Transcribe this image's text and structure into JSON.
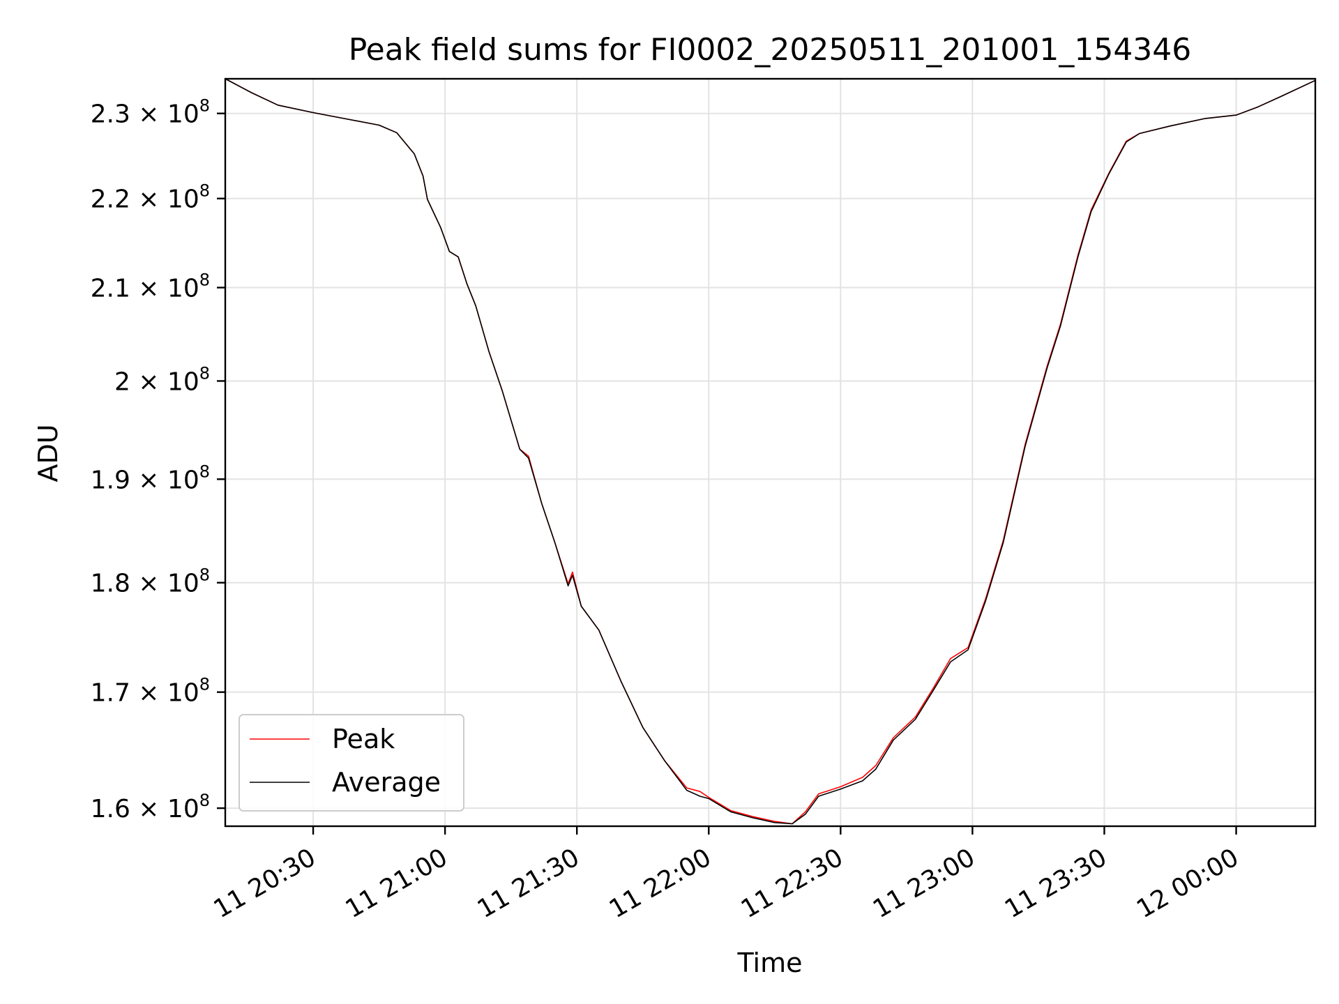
{
  "chart_data": {
    "type": "line",
    "title": "Peak field sums for FI0002_20250511_201001_154346",
    "xlabel": "Time",
    "ylabel": "ADU",
    "y_scale": "log",
    "grid": true,
    "legend_position": "lower-left",
    "xlim": [
      "2025-05-11 20:10",
      "2025-05-12 00:18"
    ],
    "ylim": [
      158500000,
      234200000
    ],
    "x_ticks": [
      {
        "value": "2025-05-11 20:30",
        "label": "11 20:30"
      },
      {
        "value": "2025-05-11 21:00",
        "label": "11 21:00"
      },
      {
        "value": "2025-05-11 21:30",
        "label": "11 21:30"
      },
      {
        "value": "2025-05-11 22:00",
        "label": "11 22:00"
      },
      {
        "value": "2025-05-11 22:30",
        "label": "11 22:30"
      },
      {
        "value": "2025-05-11 23:00",
        "label": "11 23:00"
      },
      {
        "value": "2025-05-11 23:30",
        "label": "11 23:30"
      },
      {
        "value": "2025-05-12 00:00",
        "label": "12 00:00"
      }
    ],
    "y_ticks": [
      {
        "value": 160000000,
        "mantissa": "1.6",
        "exponent": "8"
      },
      {
        "value": 170000000,
        "mantissa": "1.7",
        "exponent": "8"
      },
      {
        "value": 180000000,
        "mantissa": "1.8",
        "exponent": "8"
      },
      {
        "value": 190000000,
        "mantissa": "1.9",
        "exponent": "8"
      },
      {
        "value": 200000000,
        "mantissa": "2",
        "exponent": "8"
      },
      {
        "value": 210000000,
        "mantissa": "2.1",
        "exponent": "8"
      },
      {
        "value": 220000000,
        "mantissa": "2.2",
        "exponent": "8"
      },
      {
        "value": 230000000,
        "mantissa": "2.3",
        "exponent": "8"
      }
    ],
    "series": [
      {
        "name": "Peak",
        "color": "#ff0000",
        "points": [
          [
            "2025-05-11 20:10",
            234200000
          ],
          [
            "2025-05-11 20:16",
            232500000
          ],
          [
            "2025-05-11 20:22",
            231000000
          ],
          [
            "2025-05-11 20:30",
            230100000
          ],
          [
            "2025-05-11 20:38",
            229300000
          ],
          [
            "2025-05-11 20:45",
            228600000
          ],
          [
            "2025-05-11 20:49",
            227700000
          ],
          [
            "2025-05-11 20:53",
            225200000
          ],
          [
            "2025-05-11 20:55",
            222600000
          ],
          [
            "2025-05-11 20:56",
            219900000
          ],
          [
            "2025-05-11 20:59",
            216700000
          ],
          [
            "2025-05-11 21:01",
            214000000
          ],
          [
            "2025-05-11 21:03",
            213400000
          ],
          [
            "2025-05-11 21:05",
            210400000
          ],
          [
            "2025-05-11 21:07",
            208000000
          ],
          [
            "2025-05-11 21:10",
            203100000
          ],
          [
            "2025-05-11 21:13",
            199000000
          ],
          [
            "2025-05-11 21:17",
            193000000
          ],
          [
            "2025-05-11 21:19",
            192300000
          ],
          [
            "2025-05-11 21:22",
            187600000
          ],
          [
            "2025-05-11 21:25",
            183800000
          ],
          [
            "2025-05-11 21:28",
            179900000
          ],
          [
            "2025-05-11 21:29",
            181000000
          ],
          [
            "2025-05-11 21:31",
            177800000
          ],
          [
            "2025-05-11 21:35",
            175600000
          ],
          [
            "2025-05-11 21:40",
            171000000
          ],
          [
            "2025-05-11 21:45",
            166900000
          ],
          [
            "2025-05-11 21:50",
            164000000
          ],
          [
            "2025-05-11 21:55",
            161700000
          ],
          [
            "2025-05-11 21:58",
            161400000
          ],
          [
            "2025-05-11 22:00",
            160900000
          ],
          [
            "2025-05-11 22:05",
            159800000
          ],
          [
            "2025-05-11 22:10",
            159300000
          ],
          [
            "2025-05-11 22:15",
            158900000
          ],
          [
            "2025-05-11 22:19",
            158700000
          ],
          [
            "2025-05-11 22:22",
            159700000
          ],
          [
            "2025-05-11 22:25",
            161200000
          ],
          [
            "2025-05-11 22:30",
            161800000
          ],
          [
            "2025-05-11 22:35",
            162600000
          ],
          [
            "2025-05-11 22:38",
            163600000
          ],
          [
            "2025-05-11 22:42",
            166000000
          ],
          [
            "2025-05-11 22:47",
            167800000
          ],
          [
            "2025-05-11 22:51",
            170300000
          ],
          [
            "2025-05-11 22:55",
            173000000
          ],
          [
            "2025-05-11 22:59",
            174000000
          ],
          [
            "2025-05-11 23:03",
            178500000
          ],
          [
            "2025-05-11 23:07",
            184000000
          ],
          [
            "2025-05-11 23:12",
            193500000
          ],
          [
            "2025-05-11 23:17",
            201600000
          ],
          [
            "2025-05-11 23:20",
            206000000
          ],
          [
            "2025-05-11 23:24",
            213600000
          ],
          [
            "2025-05-11 23:27",
            218700000
          ],
          [
            "2025-05-11 23:31",
            222900000
          ],
          [
            "2025-05-11 23:35",
            226700000
          ],
          [
            "2025-05-11 23:38",
            227600000
          ],
          [
            "2025-05-11 23:45",
            228500000
          ],
          [
            "2025-05-11 23:53",
            229400000
          ],
          [
            "2025-05-12 00:00",
            229800000
          ],
          [
            "2025-05-12 00:05",
            230800000
          ],
          [
            "2025-05-12 00:10",
            232000000
          ],
          [
            "2025-05-12 00:18",
            234000000
          ]
        ]
      },
      {
        "name": "Average",
        "color": "#000000",
        "points": [
          [
            "2025-05-11 20:10",
            234200000
          ],
          [
            "2025-05-11 20:16",
            232500000
          ],
          [
            "2025-05-11 20:22",
            231000000
          ],
          [
            "2025-05-11 20:30",
            230100000
          ],
          [
            "2025-05-11 20:38",
            229300000
          ],
          [
            "2025-05-11 20:45",
            228600000
          ],
          [
            "2025-05-11 20:49",
            227700000
          ],
          [
            "2025-05-11 20:53",
            225200000
          ],
          [
            "2025-05-11 20:55",
            222600000
          ],
          [
            "2025-05-11 20:56",
            219900000
          ],
          [
            "2025-05-11 20:59",
            216700000
          ],
          [
            "2025-05-11 21:01",
            214000000
          ],
          [
            "2025-05-11 21:03",
            213400000
          ],
          [
            "2025-05-11 21:05",
            210400000
          ],
          [
            "2025-05-11 21:07",
            208000000
          ],
          [
            "2025-05-11 21:10",
            203100000
          ],
          [
            "2025-05-11 21:13",
            199000000
          ],
          [
            "2025-05-11 21:17",
            193000000
          ],
          [
            "2025-05-11 21:19",
            192100000
          ],
          [
            "2025-05-11 21:22",
            187600000
          ],
          [
            "2025-05-11 21:25",
            183800000
          ],
          [
            "2025-05-11 21:28",
            179700000
          ],
          [
            "2025-05-11 21:29",
            180700000
          ],
          [
            "2025-05-11 21:31",
            177800000
          ],
          [
            "2025-05-11 21:35",
            175600000
          ],
          [
            "2025-05-11 21:40",
            171000000
          ],
          [
            "2025-05-11 21:45",
            166900000
          ],
          [
            "2025-05-11 21:50",
            164000000
          ],
          [
            "2025-05-11 21:55",
            161500000
          ],
          [
            "2025-05-11 21:58",
            161000000
          ],
          [
            "2025-05-11 22:00",
            160800000
          ],
          [
            "2025-05-11 22:05",
            159700000
          ],
          [
            "2025-05-11 22:10",
            159200000
          ],
          [
            "2025-05-11 22:15",
            158800000
          ],
          [
            "2025-05-11 22:19",
            158700000
          ],
          [
            "2025-05-11 22:22",
            159500000
          ],
          [
            "2025-05-11 22:25",
            161000000
          ],
          [
            "2025-05-11 22:30",
            161600000
          ],
          [
            "2025-05-11 22:35",
            162300000
          ],
          [
            "2025-05-11 22:38",
            163300000
          ],
          [
            "2025-05-11 22:42",
            165800000
          ],
          [
            "2025-05-11 22:47",
            167600000
          ],
          [
            "2025-05-11 22:51",
            170100000
          ],
          [
            "2025-05-11 22:55",
            172700000
          ],
          [
            "2025-05-11 22:59",
            173800000
          ],
          [
            "2025-05-11 23:03",
            178300000
          ],
          [
            "2025-05-11 23:07",
            183800000
          ],
          [
            "2025-05-11 23:12",
            193300000
          ],
          [
            "2025-05-11 23:17",
            201400000
          ],
          [
            "2025-05-11 23:20",
            205800000
          ],
          [
            "2025-05-11 23:24",
            213400000
          ],
          [
            "2025-05-11 23:27",
            218500000
          ],
          [
            "2025-05-11 23:31",
            222800000
          ],
          [
            "2025-05-11 23:35",
            226600000
          ],
          [
            "2025-05-11 23:38",
            227600000
          ],
          [
            "2025-05-11 23:45",
            228500000
          ],
          [
            "2025-05-11 23:53",
            229400000
          ],
          [
            "2025-05-12 00:00",
            229800000
          ],
          [
            "2025-05-12 00:05",
            230800000
          ],
          [
            "2025-05-12 00:10",
            232000000
          ],
          [
            "2025-05-12 00:18",
            234000000
          ]
        ]
      }
    ]
  }
}
